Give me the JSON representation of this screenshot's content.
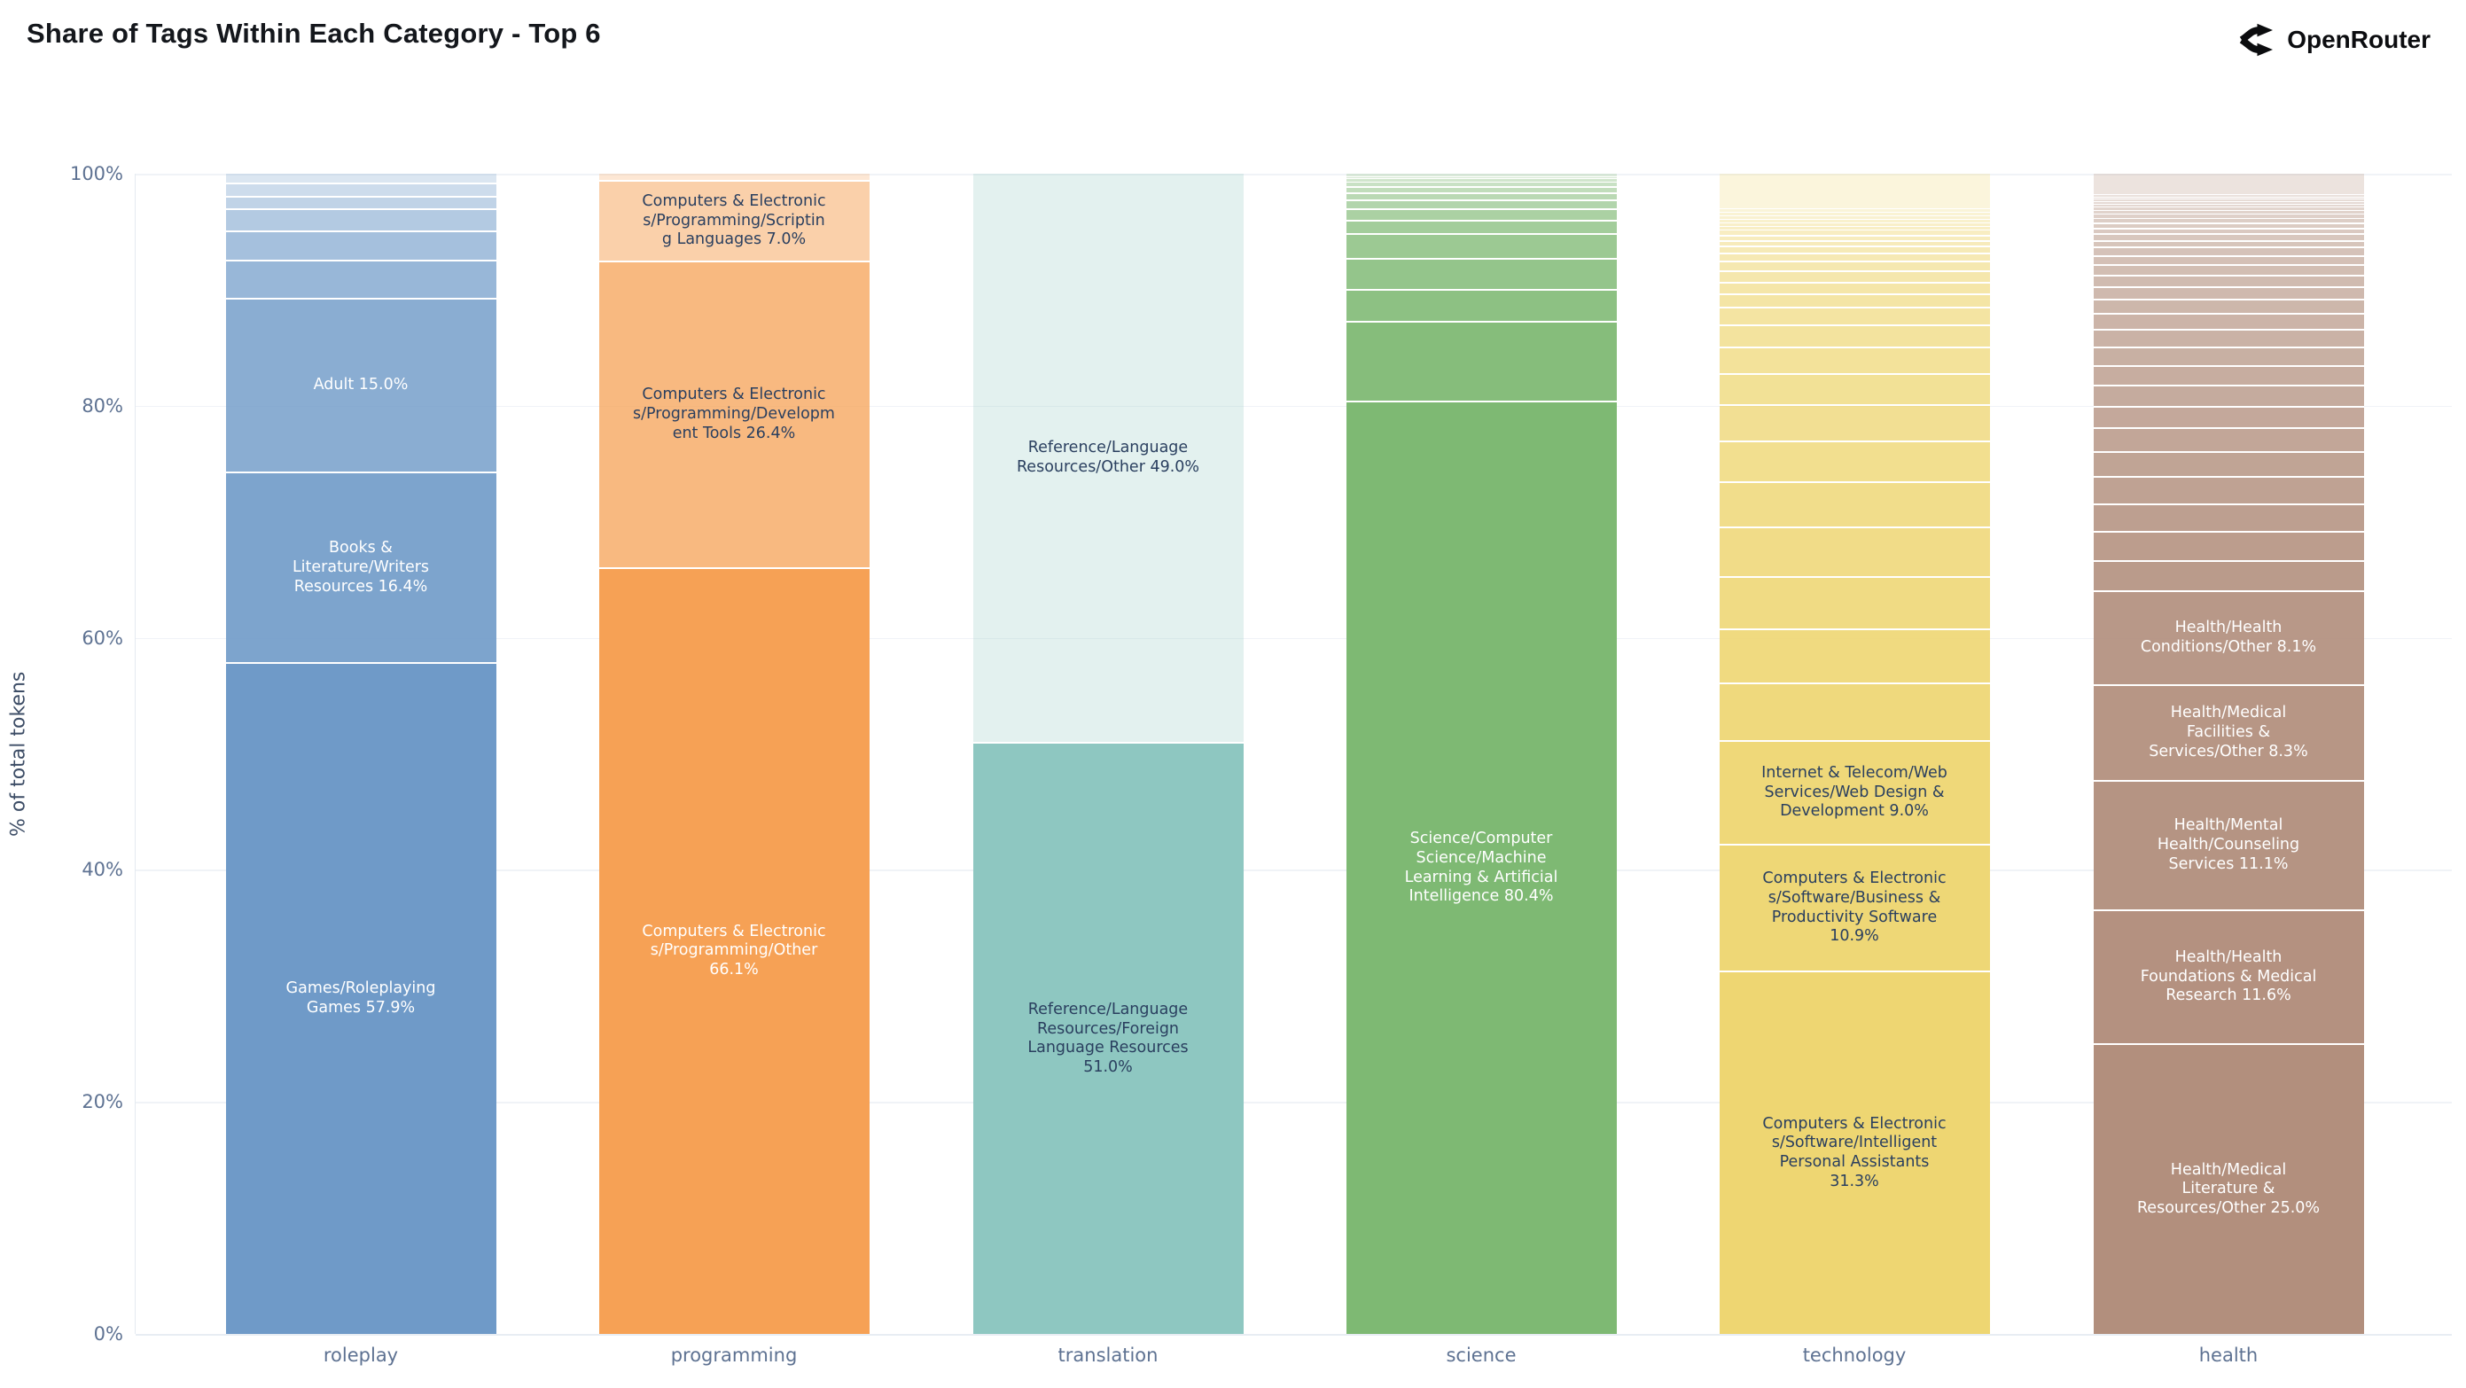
{
  "title": "Share of Tags Within Each Category - Top 6",
  "brand": {
    "name": "OpenRouter",
    "icon": "openrouter-chevron-icon"
  },
  "y_axis": {
    "label": "% of total tokens",
    "ticks": [
      "0%",
      "20%",
      "40%",
      "60%",
      "80%",
      "100%"
    ]
  },
  "x_axis": {
    "categories": [
      "roleplay",
      "programming",
      "translation",
      "science",
      "technology",
      "health"
    ]
  },
  "chart_data": {
    "type": "bar",
    "stacked": true,
    "orientation": "vertical",
    "title": "Share of Tags Within Each Category - Top 6",
    "xlabel": "",
    "ylabel": "% of total tokens",
    "ylim": [
      0,
      100
    ],
    "value_unit": "percent of total tokens",
    "grid": "horizontal, 20% steps",
    "legend": "none (labels inside segments)",
    "segment_order": "top_to_bottom",
    "shading_rule": "segment opacity fades from 1.0 at bottom segment to 0.25 at top segment of each bar",
    "categories": [
      "roleplay",
      "programming",
      "translation",
      "science",
      "technology",
      "health"
    ],
    "bars": [
      {
        "category": "roleplay",
        "base_color": "#6F9AC8",
        "segments": [
          {
            "value": 0.8
          },
          {
            "value": 1.1
          },
          {
            "value": 1.1
          },
          {
            "value": 1.9
          },
          {
            "value": 2.5
          },
          {
            "value": 3.3
          },
          {
            "value": 15.0,
            "label": "Adult",
            "text": "Adult 15.0%",
            "text_color": "#ffffff"
          },
          {
            "value": 16.4,
            "label": "Books & Literature/Writers Resources",
            "text": "Books &\nLiterature/Writers\nResources 16.4%",
            "text_color": "#ffffff"
          },
          {
            "value": 57.9,
            "label": "Games/Roleplaying Games",
            "text": "Games/Roleplaying\nGames 57.9%",
            "text_color": "#ffffff"
          }
        ]
      },
      {
        "category": "programming",
        "base_color": "#F6A155",
        "segments": [
          {
            "value": 0.5
          },
          {
            "value": 7.0,
            "label": "Computers & Electronics/Programming/Scripting Languages",
            "text": "Computers & Electronic\ns/Programming/Scriptin\ng Languages 7.0%",
            "text_color": "#2a3f5f"
          },
          {
            "value": 26.4,
            "label": "Computers & Electronics/Programming/Development Tools",
            "text": "Computers & Electronic\ns/Programming/Developm\nent Tools 26.4%",
            "text_color": "#2a3f5f"
          },
          {
            "value": 66.1,
            "label": "Computers & Electronics/Programming/Other",
            "text": "Computers & Electronic\ns/Programming/Other\n66.1%",
            "text_color": "#ffffff"
          }
        ]
      },
      {
        "category": "translation",
        "base_color": "#8EC7C1",
        "segments": [
          {
            "value": 49.0,
            "label": "Reference/Language Resources/Other",
            "text": "Reference/Language\nResources/Other 49.0%",
            "text_color": "#2a3f5f"
          },
          {
            "value": 51.0,
            "label": "Reference/Language Resources/Foreign Language Resources",
            "text": "Reference/Language\nResources/Foreign\nLanguage Resources\n51.0%",
            "text_color": "#2a3f5f"
          }
        ]
      },
      {
        "category": "science",
        "base_color": "#7EB973",
        "segments": [
          {
            "value": 0.2
          },
          {
            "value": 0.2
          },
          {
            "value": 0.3
          },
          {
            "value": 0.4
          },
          {
            "value": 0.5
          },
          {
            "value": 0.6
          },
          {
            "value": 0.8
          },
          {
            "value": 1.0
          },
          {
            "value": 1.1
          },
          {
            "value": 2.2
          },
          {
            "value": 2.6
          },
          {
            "value": 2.8
          },
          {
            "value": 6.9
          },
          {
            "value": 80.4,
            "label": "Science/Computer Science/Machine Learning & Artificial Intelligence",
            "text": "Science/Computer\nScience/Machine\nLearning & Artificial\nIntelligence 80.4%",
            "text_color": "#ffffff"
          }
        ]
      },
      {
        "category": "technology",
        "base_color": "#EED672",
        "segments": [
          {
            "value": 3.0
          },
          {
            "value": 0.3
          },
          {
            "value": 0.3
          },
          {
            "value": 0.3
          },
          {
            "value": 0.3
          },
          {
            "value": 0.3
          },
          {
            "value": 0.35
          },
          {
            "value": 0.4
          },
          {
            "value": 0.45
          },
          {
            "value": 0.5
          },
          {
            "value": 0.6
          },
          {
            "value": 0.7
          },
          {
            "value": 0.8
          },
          {
            "value": 1.0
          },
          {
            "value": 1.0
          },
          {
            "value": 1.2
          },
          {
            "value": 1.5
          },
          {
            "value": 1.9
          },
          {
            "value": 2.3
          },
          {
            "value": 2.7
          },
          {
            "value": 3.1
          },
          {
            "value": 3.5
          },
          {
            "value": 3.9
          },
          {
            "value": 4.3
          },
          {
            "value": 4.5
          },
          {
            "value": 4.7
          },
          {
            "value": 4.9
          },
          {
            "value": 9.0,
            "label": "Internet & Telecom/Web Services/Web Design & Development",
            "text": "Internet & Telecom/Web\nServices/Web Design &\nDevelopment 9.0%",
            "text_color": "#2a3f5f"
          },
          {
            "value": 10.9,
            "label": "Computers & Electronics/Software/Business & Productivity Software",
            "text": "Computers & Electronic\ns/Software/Business &\nProductivity Software\n10.9%",
            "text_color": "#2a3f5f"
          },
          {
            "value": 31.3,
            "label": "Computers & Electronics/Software/Intelligent Personal Assistants",
            "text": "Computers & Electronic\ns/Software/Intelligent\nPersonal Assistants\n31.3%",
            "text_color": "#2a3f5f"
          }
        ]
      },
      {
        "category": "health",
        "base_color": "#B28F7D",
        "segments": [
          {
            "value": 1.75
          },
          {
            "value": 0.2
          },
          {
            "value": 0.2
          },
          {
            "value": 0.2
          },
          {
            "value": 0.25
          },
          {
            "value": 0.25
          },
          {
            "value": 0.3
          },
          {
            "value": 0.3
          },
          {
            "value": 0.35
          },
          {
            "value": 0.4
          },
          {
            "value": 0.45
          },
          {
            "value": 0.5
          },
          {
            "value": 0.55
          },
          {
            "value": 0.6
          },
          {
            "value": 0.7
          },
          {
            "value": 0.8
          },
          {
            "value": 0.9
          },
          {
            "value": 1.0
          },
          {
            "value": 1.1
          },
          {
            "value": 1.2
          },
          {
            "value": 1.4
          },
          {
            "value": 1.5
          },
          {
            "value": 1.6
          },
          {
            "value": 1.7
          },
          {
            "value": 1.8
          },
          {
            "value": 1.9
          },
          {
            "value": 2.0
          },
          {
            "value": 2.2
          },
          {
            "value": 2.3
          },
          {
            "value": 2.4
          },
          {
            "value": 2.5
          },
          {
            "value": 2.6
          },
          {
            "value": 8.1,
            "label": "Health/Health Conditions/Other",
            "text": "Health/Health\nConditions/Other 8.1%",
            "text_color": "#ffffff"
          },
          {
            "value": 8.3,
            "label": "Health/Medical Facilities & Services/Other",
            "text": "Health/Medical\nFacilities &\nServices/Other 8.3%",
            "text_color": "#ffffff"
          },
          {
            "value": 11.1,
            "label": "Health/Mental Health/Counseling Services",
            "text": "Health/Mental\nHealth/Counseling\nServices 11.1%",
            "text_color": "#ffffff"
          },
          {
            "value": 11.6,
            "label": "Health/Health Foundations & Medical Research",
            "text": "Health/Health\nFoundations & Medical\nResearch 11.6%",
            "text_color": "#ffffff"
          },
          {
            "value": 25.0,
            "label": "Health/Medical Literature & Resources/Other",
            "text": "Health/Medical\nLiterature &\nResources/Other 25.0%",
            "text_color": "#ffffff"
          }
        ]
      }
    ]
  }
}
